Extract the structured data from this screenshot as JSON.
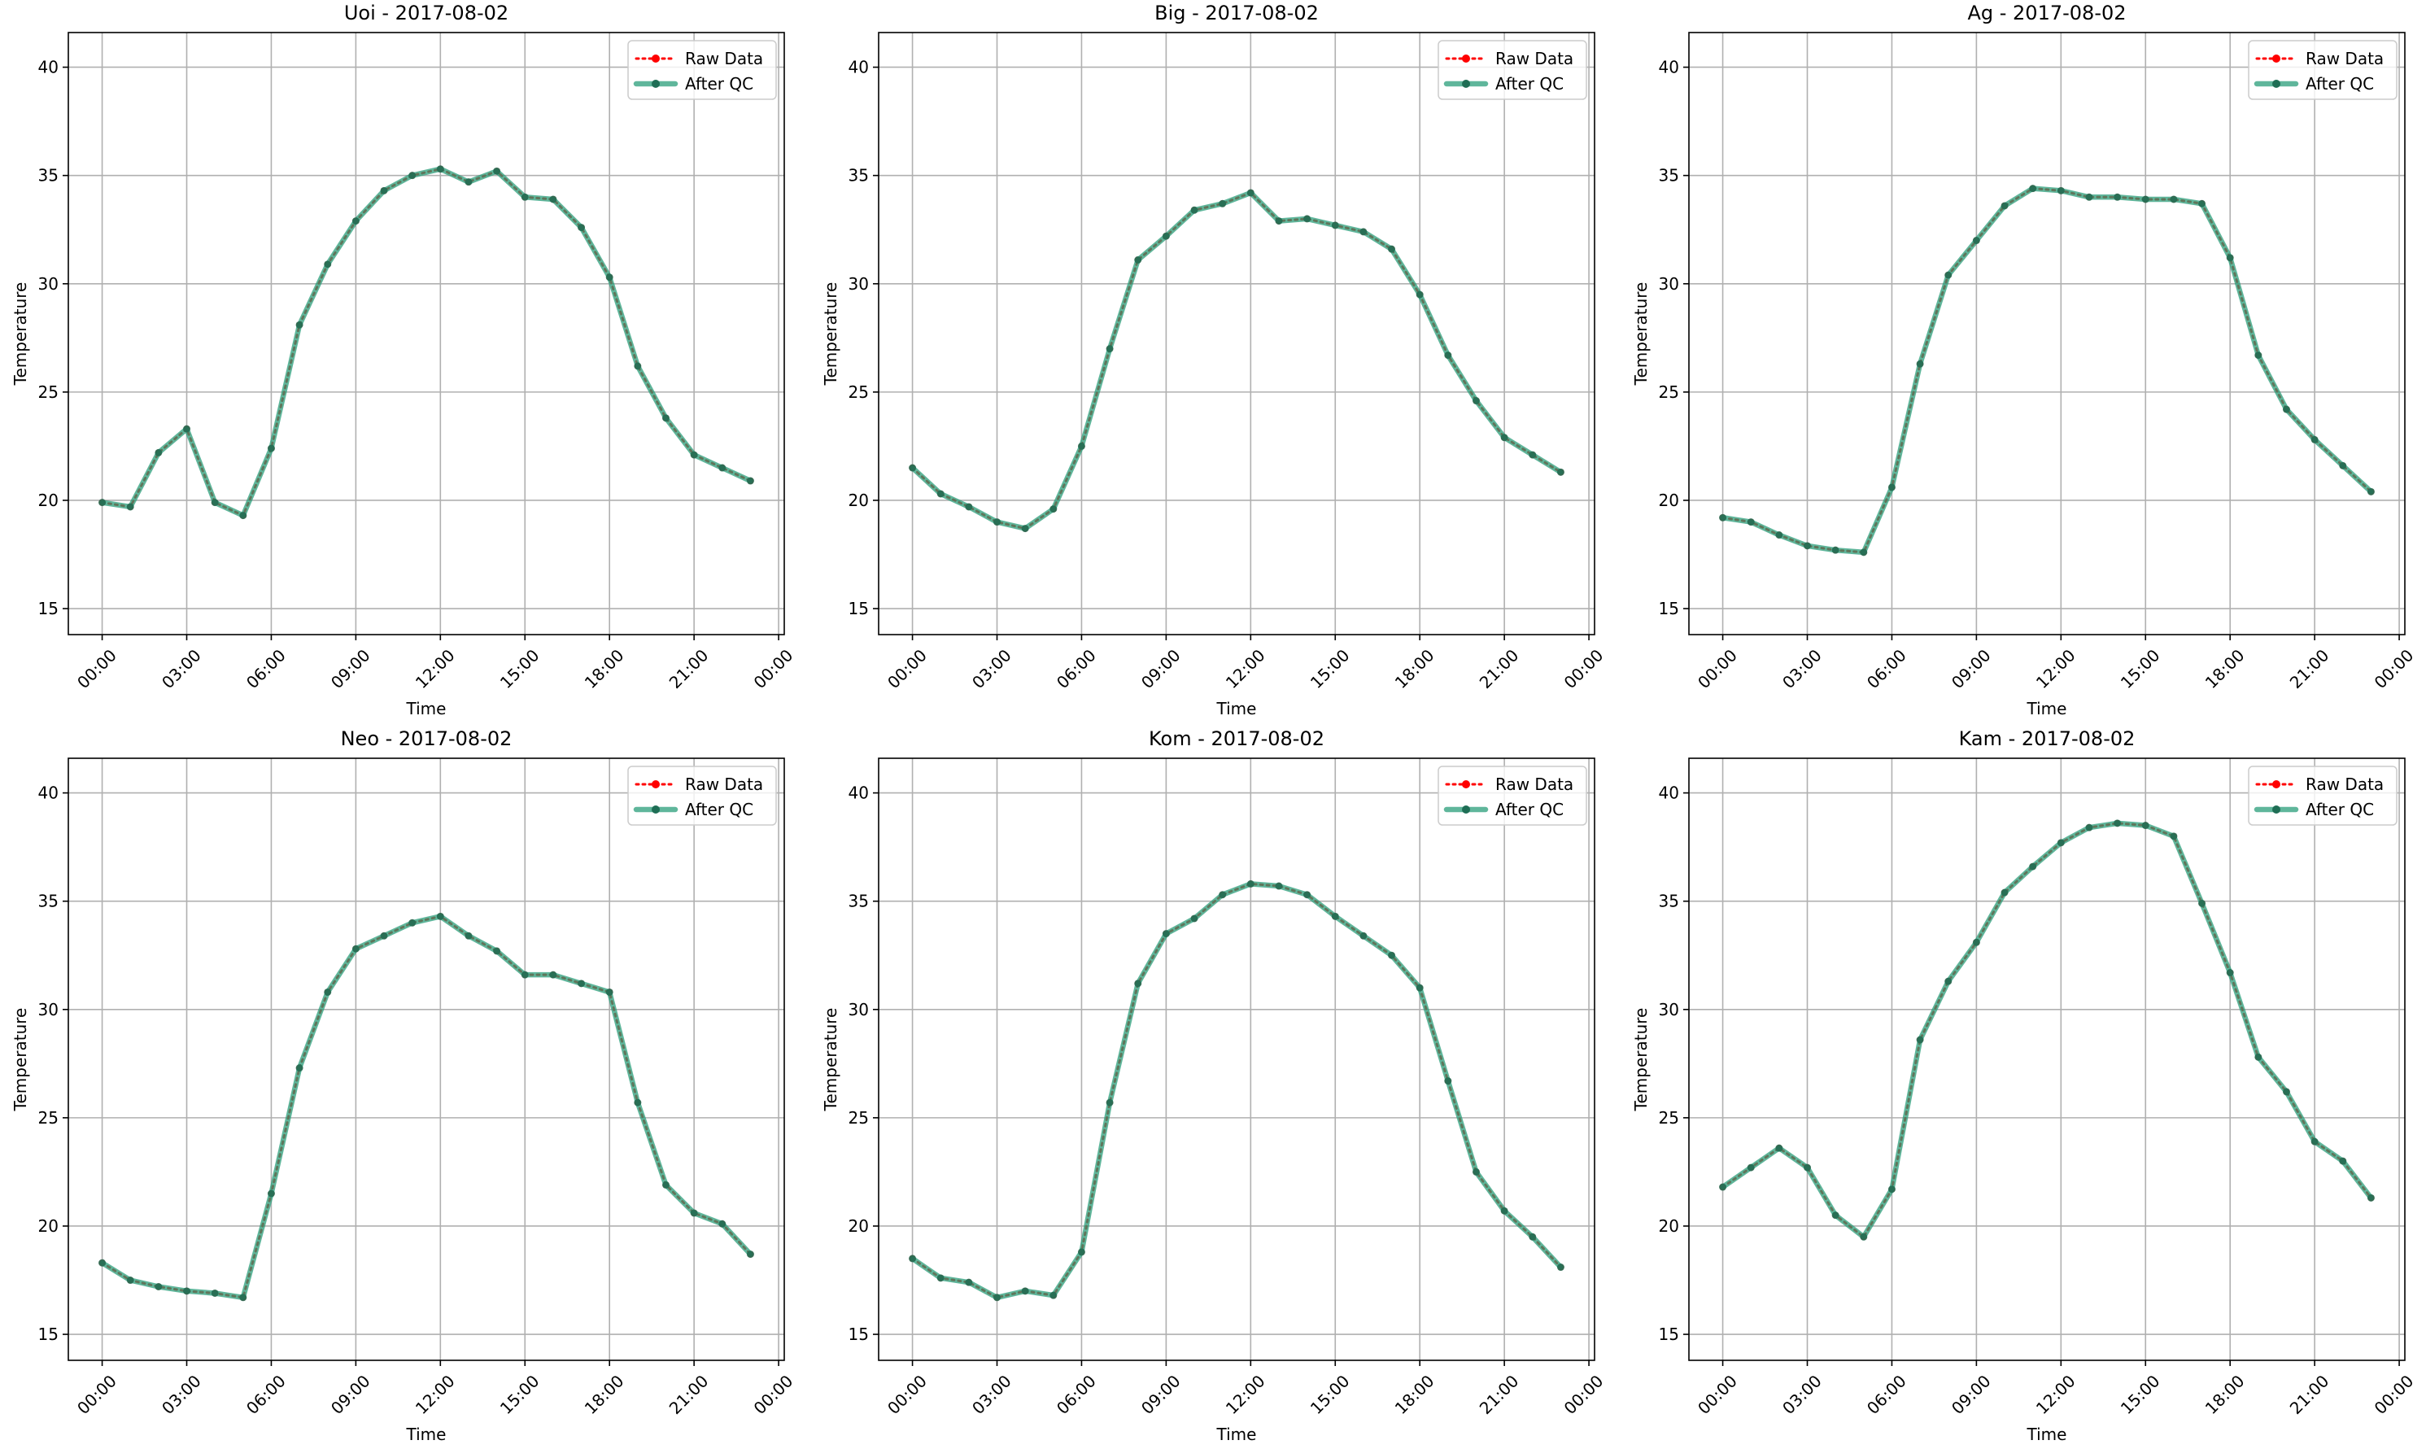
{
  "chart_data": [
    {
      "type": "line",
      "title": "Uoi - 2017-08-02",
      "xlabel": "Time",
      "ylabel": "Temperature",
      "x_ticks": [
        "00:00",
        "03:00",
        "06:00",
        "09:00",
        "12:00",
        "15:00",
        "18:00",
        "21:00",
        "00:00"
      ],
      "x_hours": [
        0,
        1,
        2,
        3,
        4,
        5,
        6,
        7,
        8,
        9,
        10,
        11,
        12,
        13,
        14,
        15,
        16,
        17,
        18,
        19,
        20,
        21,
        22,
        23
      ],
      "xlim": [
        -1.2,
        24.2
      ],
      "ylim": [
        13.8,
        41.6
      ],
      "y_ticks": [
        15,
        20,
        25,
        30,
        35,
        40
      ],
      "grid": true,
      "legend_position": "top-right",
      "series": [
        {
          "name": "Raw Data",
          "color": "#ff0000",
          "style": "dotted",
          "values": [
            19.9,
            19.7,
            22.2,
            23.3,
            19.9,
            19.3,
            22.4,
            28.1,
            30.9,
            32.9,
            34.3,
            35.0,
            35.3,
            34.7,
            35.2,
            34.0,
            33.9,
            32.6,
            30.3,
            26.2,
            23.8,
            22.1,
            21.5,
            20.9
          ]
        },
        {
          "name": "After QC",
          "color": "#2a9d7a",
          "style": "solid",
          "values": [
            19.9,
            19.7,
            22.2,
            23.3,
            19.9,
            19.3,
            22.4,
            28.1,
            30.9,
            32.9,
            34.3,
            35.0,
            35.3,
            34.7,
            35.2,
            34.0,
            33.9,
            32.6,
            30.3,
            26.2,
            23.8,
            22.1,
            21.5,
            20.9
          ]
        }
      ]
    },
    {
      "type": "line",
      "title": "Big - 2017-08-02",
      "xlabel": "Time",
      "ylabel": "Temperature",
      "x_ticks": [
        "00:00",
        "03:00",
        "06:00",
        "09:00",
        "12:00",
        "15:00",
        "18:00",
        "21:00",
        "00:00"
      ],
      "x_hours": [
        0,
        1,
        2,
        3,
        4,
        5,
        6,
        7,
        8,
        9,
        10,
        11,
        12,
        13,
        14,
        15,
        16,
        17,
        18,
        19,
        20,
        21,
        22,
        23
      ],
      "xlim": [
        -1.2,
        24.2
      ],
      "ylim": [
        13.8,
        41.6
      ],
      "y_ticks": [
        15,
        20,
        25,
        30,
        35,
        40
      ],
      "grid": true,
      "legend_position": "top-right",
      "series": [
        {
          "name": "Raw Data",
          "color": "#ff0000",
          "style": "dotted",
          "values": [
            21.5,
            20.3,
            19.7,
            19.0,
            18.7,
            19.6,
            22.5,
            27.0,
            31.1,
            32.2,
            33.4,
            33.7,
            34.2,
            32.9,
            33.0,
            32.7,
            32.4,
            31.6,
            29.5,
            26.7,
            24.6,
            22.9,
            22.1,
            21.3
          ]
        },
        {
          "name": "After QC",
          "color": "#2a9d7a",
          "style": "solid",
          "values": [
            21.5,
            20.3,
            19.7,
            19.0,
            18.7,
            19.6,
            22.5,
            27.0,
            31.1,
            32.2,
            33.4,
            33.7,
            34.2,
            32.9,
            33.0,
            32.7,
            32.4,
            31.6,
            29.5,
            26.7,
            24.6,
            22.9,
            22.1,
            21.3
          ]
        }
      ]
    },
    {
      "type": "line",
      "title": "Ag - 2017-08-02",
      "xlabel": "Time",
      "ylabel": "Temperature",
      "x_ticks": [
        "00:00",
        "03:00",
        "06:00",
        "09:00",
        "12:00",
        "15:00",
        "18:00",
        "21:00",
        "00:00"
      ],
      "x_hours": [
        0,
        1,
        2,
        3,
        4,
        5,
        6,
        7,
        8,
        9,
        10,
        11,
        12,
        13,
        14,
        15,
        16,
        17,
        18,
        19,
        20,
        21,
        22,
        23
      ],
      "xlim": [
        -1.2,
        24.2
      ],
      "ylim": [
        13.8,
        41.6
      ],
      "y_ticks": [
        15,
        20,
        25,
        30,
        35,
        40
      ],
      "grid": true,
      "legend_position": "top-right",
      "series": [
        {
          "name": "Raw Data",
          "color": "#ff0000",
          "style": "dotted",
          "values": [
            19.2,
            19.0,
            18.4,
            17.9,
            17.7,
            17.6,
            20.6,
            26.3,
            30.4,
            32.0,
            33.6,
            34.4,
            34.3,
            34.0,
            34.0,
            33.9,
            33.9,
            33.7,
            31.2,
            26.7,
            24.2,
            22.8,
            21.6,
            20.4
          ]
        },
        {
          "name": "After QC",
          "color": "#2a9d7a",
          "style": "solid",
          "values": [
            19.2,
            19.0,
            18.4,
            17.9,
            17.7,
            17.6,
            20.6,
            26.3,
            30.4,
            32.0,
            33.6,
            34.4,
            34.3,
            34.0,
            34.0,
            33.9,
            33.9,
            33.7,
            31.2,
            26.7,
            24.2,
            22.8,
            21.6,
            20.4
          ]
        }
      ]
    },
    {
      "type": "line",
      "title": "Neo - 2017-08-02",
      "xlabel": "Time",
      "ylabel": "Temperature",
      "x_ticks": [
        "00:00",
        "03:00",
        "06:00",
        "09:00",
        "12:00",
        "15:00",
        "18:00",
        "21:00",
        "00:00"
      ],
      "x_hours": [
        0,
        1,
        2,
        3,
        4,
        5,
        6,
        7,
        8,
        9,
        10,
        11,
        12,
        13,
        14,
        15,
        16,
        17,
        18,
        19,
        20,
        21,
        22,
        23
      ],
      "xlim": [
        -1.2,
        24.2
      ],
      "ylim": [
        13.8,
        41.6
      ],
      "y_ticks": [
        15,
        20,
        25,
        30,
        35,
        40
      ],
      "grid": true,
      "legend_position": "top-right",
      "series": [
        {
          "name": "Raw Data",
          "color": "#ff0000",
          "style": "dotted",
          "values": [
            18.3,
            17.5,
            17.2,
            17.0,
            16.9,
            16.7,
            21.5,
            27.3,
            30.8,
            32.8,
            33.4,
            34.0,
            34.3,
            33.4,
            32.7,
            31.6,
            31.6,
            31.2,
            30.8,
            25.7,
            21.9,
            20.6,
            20.1,
            18.7
          ]
        },
        {
          "name": "After QC",
          "color": "#2a9d7a",
          "style": "solid",
          "values": [
            18.3,
            17.5,
            17.2,
            17.0,
            16.9,
            16.7,
            21.5,
            27.3,
            30.8,
            32.8,
            33.4,
            34.0,
            34.3,
            33.4,
            32.7,
            31.6,
            31.6,
            31.2,
            30.8,
            25.7,
            21.9,
            20.6,
            20.1,
            18.7
          ]
        }
      ]
    },
    {
      "type": "line",
      "title": "Kom - 2017-08-02",
      "xlabel": "Time",
      "ylabel": "Temperature",
      "x_ticks": [
        "00:00",
        "03:00",
        "06:00",
        "09:00",
        "12:00",
        "15:00",
        "18:00",
        "21:00",
        "00:00"
      ],
      "x_hours": [
        0,
        1,
        2,
        3,
        4,
        5,
        6,
        7,
        8,
        9,
        10,
        11,
        12,
        13,
        14,
        15,
        16,
        17,
        18,
        19,
        20,
        21,
        22,
        23
      ],
      "xlim": [
        -1.2,
        24.2
      ],
      "ylim": [
        13.8,
        41.6
      ],
      "y_ticks": [
        15,
        20,
        25,
        30,
        35,
        40
      ],
      "grid": true,
      "legend_position": "top-right",
      "series": [
        {
          "name": "Raw Data",
          "color": "#ff0000",
          "style": "dotted",
          "values": [
            18.5,
            17.6,
            17.4,
            16.7,
            17.0,
            16.8,
            18.8,
            25.7,
            31.2,
            33.5,
            34.2,
            35.3,
            35.8,
            35.7,
            35.3,
            34.3,
            33.4,
            32.5,
            31.0,
            26.7,
            22.5,
            20.7,
            19.5,
            18.1
          ]
        },
        {
          "name": "After QC",
          "color": "#2a9d7a",
          "style": "solid",
          "values": [
            18.5,
            17.6,
            17.4,
            16.7,
            17.0,
            16.8,
            18.8,
            25.7,
            31.2,
            33.5,
            34.2,
            35.3,
            35.8,
            35.7,
            35.3,
            34.3,
            33.4,
            32.5,
            31.0,
            26.7,
            22.5,
            20.7,
            19.5,
            18.1
          ]
        }
      ]
    },
    {
      "type": "line",
      "title": "Kam - 2017-08-02",
      "xlabel": "Time",
      "ylabel": "Temperature",
      "x_ticks": [
        "00:00",
        "03:00",
        "06:00",
        "09:00",
        "12:00",
        "15:00",
        "18:00",
        "21:00",
        "00:00"
      ],
      "x_hours": [
        0,
        1,
        2,
        3,
        4,
        5,
        6,
        7,
        8,
        9,
        10,
        11,
        12,
        13,
        14,
        15,
        16,
        17,
        18,
        19,
        20,
        21,
        22,
        23
      ],
      "xlim": [
        -1.2,
        24.2
      ],
      "ylim": [
        13.8,
        41.6
      ],
      "y_ticks": [
        15,
        20,
        25,
        30,
        35,
        40
      ],
      "grid": true,
      "legend_position": "top-right",
      "series": [
        {
          "name": "Raw Data",
          "color": "#ff0000",
          "style": "dotted",
          "values": [
            21.8,
            22.7,
            23.6,
            22.7,
            20.5,
            19.5,
            21.7,
            28.6,
            31.3,
            33.1,
            35.4,
            36.6,
            37.7,
            38.4,
            38.6,
            38.5,
            38.0,
            34.9,
            31.7,
            27.8,
            26.2,
            23.9,
            23.0,
            21.3
          ]
        },
        {
          "name": "After QC",
          "color": "#2a9d7a",
          "style": "solid",
          "values": [
            21.8,
            22.7,
            23.6,
            22.7,
            20.5,
            19.5,
            21.7,
            28.6,
            31.3,
            33.1,
            35.4,
            36.6,
            37.7,
            38.4,
            38.6,
            38.5,
            38.0,
            34.9,
            31.7,
            27.8,
            26.2,
            23.9,
            23.0,
            21.3
          ]
        }
      ]
    }
  ]
}
